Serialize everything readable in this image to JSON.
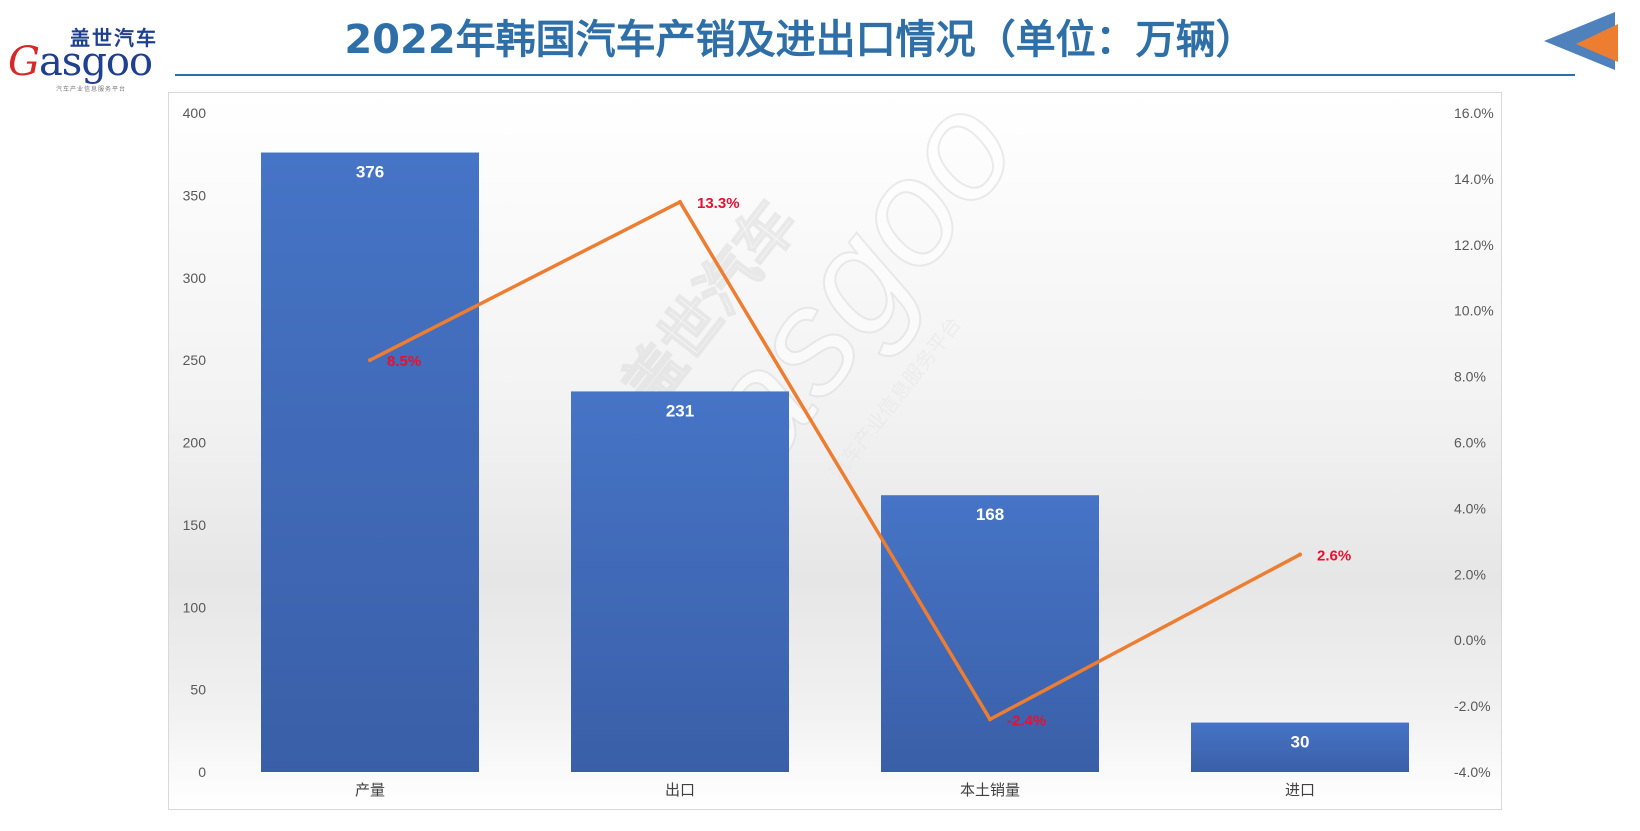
{
  "logo": {
    "name_cn": "盖世汽车",
    "wordmark_initial": "G",
    "wordmark_rest": "asgoo",
    "tagline": "汽车产业信息服务平台"
  },
  "title": "2022年韩国汽车产销及进出口情况（单位：万辆）",
  "nav": {
    "icon": "back-arrow-icon",
    "colors": [
      "#4f81bd",
      "#ed7d31"
    ]
  },
  "watermark": {
    "wordmark": "Gasgoo",
    "name_cn": "盖世汽车",
    "tagline": "汽车产业信息服务平台"
  },
  "chart_data": {
    "type": "bar",
    "categories": [
      "产量",
      "出口",
      "本土销量",
      "进口"
    ],
    "series": [
      {
        "type": "bar",
        "axis": "left",
        "values": [
          376,
          231,
          168,
          30
        ],
        "value_labels": [
          "376",
          "231",
          "168",
          "30"
        ],
        "color": "#4472c4"
      },
      {
        "type": "line",
        "axis": "right",
        "values": [
          8.5,
          13.3,
          -2.4,
          2.6
        ],
        "value_labels": [
          "8.5%",
          "13.3%",
          "-2.4%",
          "2.6%"
        ],
        "color": "#ed7d31",
        "label_color": "#e8102e"
      }
    ],
    "y_left": {
      "min": 0,
      "max": 400,
      "step": 50,
      "ticks": [
        "0",
        "50",
        "100",
        "150",
        "200",
        "250",
        "300",
        "350",
        "400"
      ]
    },
    "y_right": {
      "min": -4,
      "max": 16,
      "step": 2,
      "ticks": [
        "-4.0%",
        "-2.0%",
        "0.0%",
        "2.0%",
        "4.0%",
        "6.0%",
        "8.0%",
        "10.0%",
        "12.0%",
        "14.0%",
        "16.0%"
      ]
    },
    "grid": false,
    "legend": "none"
  }
}
